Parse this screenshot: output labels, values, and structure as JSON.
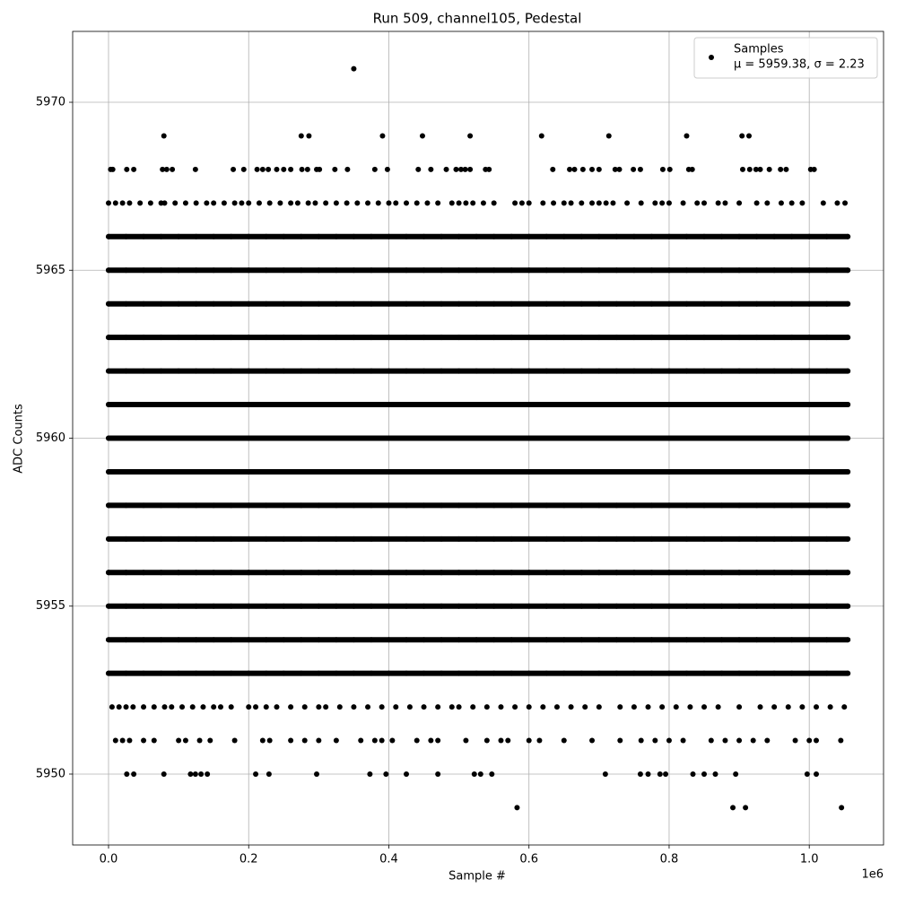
{
  "chart_data": {
    "type": "scatter",
    "title": "Run 509, channel105, Pedestal",
    "x_label": "Sample #",
    "y_label": "ADC Counts",
    "x_offset_label": "1e6",
    "series_name": "Samples",
    "legend_note": "μ = 5959.38, σ = 2.23",
    "legend": "upper right",
    "color": "#000000",
    "grid": true,
    "xlim": [
      -0.0512,
      1.106
    ],
    "ylim": [
      5947.89,
      5972.11
    ],
    "xticks": [
      {
        "value": 0,
        "label": "0.0"
      },
      0.2,
      0.4,
      0.6,
      0.8,
      {
        "value": 1,
        "label": "1.0"
      }
    ],
    "yticks": [
      5950,
      5955,
      5960,
      5965,
      5970
    ],
    "dense_x": [
      0,
      0.025,
      0.05,
      0.075,
      0.1,
      0.125,
      0.15,
      0.175,
      0.2,
      0.225,
      0.25,
      0.275,
      0.3,
      0.325,
      0.35,
      0.375,
      0.4,
      0.425,
      0.45,
      0.475,
      0.5,
      0.525,
      0.55,
      0.575,
      0.6,
      0.625,
      0.65,
      0.675,
      0.7,
      0.725,
      0.75,
      0.775,
      0.8,
      0.825,
      0.85,
      0.875,
      0.9,
      0.925,
      0.95,
      0.975,
      1,
      1.025,
      1.055
    ],
    "dense_levels": [
      5953,
      5954,
      5955,
      5956,
      5957,
      5958,
      5959,
      5960,
      5961,
      5962,
      5963,
      5964,
      5965,
      5966
    ],
    "levels": [
      {
        "y": 5971,
        "x": [
          0.35
        ]
      },
      {
        "y": 5969,
        "x": [
          0.079,
          0.275,
          0.286,
          0.391,
          0.448,
          0.516,
          0.618,
          0.714,
          0.825,
          0.904,
          0.914
        ]
      },
      {
        "y": 5968,
        "x": [
          0.003,
          0.006,
          0.026,
          0.036,
          0.077,
          0.083,
          0.091,
          0.124,
          0.178,
          0.193,
          0.212,
          0.22,
          0.228,
          0.24,
          0.25,
          0.26,
          0.276,
          0.284,
          0.297,
          0.301,
          0.323,
          0.341,
          0.38,
          0.398,
          0.442,
          0.46,
          0.482,
          0.496,
          0.503,
          0.509,
          0.516,
          0.538,
          0.543,
          0.634,
          0.658,
          0.665,
          0.677,
          0.69,
          0.7,
          0.723,
          0.729,
          0.749,
          0.759,
          0.791,
          0.801,
          0.828,
          0.833,
          0.905,
          0.915,
          0.924,
          0.93,
          0.943,
          0.959,
          0.967,
          1.002,
          1.007
        ]
      },
      {
        "y": 5967,
        "x": [
          0,
          0.01,
          0.02,
          0.03,
          0.045,
          0.06,
          0.075,
          0.08,
          0.095,
          0.11,
          0.125,
          0.14,
          0.15,
          0.165,
          0.18,
          0.19,
          0.2,
          0.215,
          0.23,
          0.245,
          0.26,
          0.27,
          0.285,
          0.295,
          0.31,
          0.325,
          0.34,
          0.355,
          0.37,
          0.385,
          0.4,
          0.41,
          0.425,
          0.44,
          0.455,
          0.47,
          0.49,
          0.5,
          0.51,
          0.52,
          0.535,
          0.55,
          0.58,
          0.59,
          0.6,
          0.62,
          0.635,
          0.65,
          0.66,
          0.675,
          0.69,
          0.7,
          0.71,
          0.72,
          0.74,
          0.76,
          0.78,
          0.79,
          0.8,
          0.82,
          0.84,
          0.85,
          0.87,
          0.88,
          0.9,
          0.925,
          0.94,
          0.96,
          0.975,
          0.99,
          1.02,
          1.04,
          1.051
        ]
      },
      {
        "y": 5952,
        "x": [
          0.005,
          0.015,
          0.025,
          0.035,
          0.05,
          0.065,
          0.08,
          0.09,
          0.105,
          0.12,
          0.135,
          0.15,
          0.16,
          0.175,
          0.2,
          0.21,
          0.225,
          0.24,
          0.26,
          0.28,
          0.3,
          0.31,
          0.33,
          0.35,
          0.37,
          0.39,
          0.41,
          0.43,
          0.45,
          0.47,
          0.49,
          0.5,
          0.52,
          0.54,
          0.56,
          0.58,
          0.6,
          0.62,
          0.64,
          0.66,
          0.68,
          0.7,
          0.73,
          0.75,
          0.77,
          0.79,
          0.81,
          0.83,
          0.85,
          0.87,
          0.9,
          0.93,
          0.95,
          0.97,
          0.99,
          1.01,
          1.03,
          1.05
        ]
      },
      {
        "y": 5951,
        "x": [
          0.01,
          0.02,
          0.03,
          0.05,
          0.065,
          0.1,
          0.11,
          0.13,
          0.145,
          0.18,
          0.22,
          0.23,
          0.26,
          0.28,
          0.3,
          0.325,
          0.36,
          0.38,
          0.39,
          0.405,
          0.44,
          0.46,
          0.47,
          0.51,
          0.54,
          0.56,
          0.57,
          0.6,
          0.615,
          0.65,
          0.69,
          0.73,
          0.76,
          0.78,
          0.8,
          0.82,
          0.86,
          0.88,
          0.9,
          0.92,
          0.94,
          0.98,
          1.0,
          1.01,
          1.045
        ]
      },
      {
        "y": 5950,
        "x": [
          0.026,
          0.036,
          0.079,
          0.117,
          0.124,
          0.132,
          0.141,
          0.21,
          0.229,
          0.297,
          0.373,
          0.396,
          0.425,
          0.47,
          0.522,
          0.531,
          0.547,
          0.709,
          0.759,
          0.77,
          0.787,
          0.795,
          0.834,
          0.85,
          0.866,
          0.895,
          0.997,
          1.01
        ]
      },
      {
        "y": 5949,
        "x": [
          0.583,
          0.891,
          0.909,
          1.046
        ]
      }
    ]
  }
}
